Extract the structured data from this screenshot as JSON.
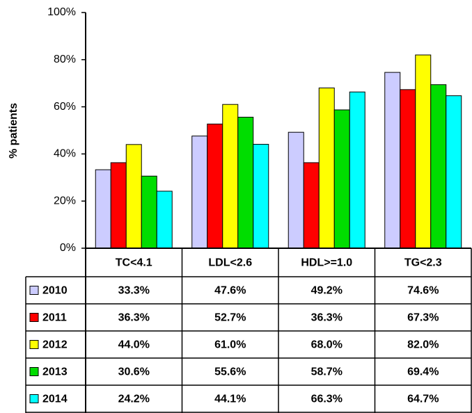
{
  "chart_data": {
    "type": "bar",
    "y_label": "% patients",
    "categories": [
      "TC<4.1",
      "LDL<2.6",
      "HDL>=1.0",
      "TG<2.3"
    ],
    "series": [
      {
        "name": "2010",
        "color": "#ccccff",
        "values": [
          33.3,
          47.6,
          49.2,
          74.6
        ],
        "value_labels": [
          "33.3%",
          "47.6%",
          "49.2%",
          "74.6%"
        ]
      },
      {
        "name": "2011",
        "color": "#ff0000",
        "values": [
          36.3,
          52.7,
          36.3,
          67.3
        ],
        "value_labels": [
          "36.3%",
          "52.7%",
          "36.3%",
          "67.3%"
        ]
      },
      {
        "name": "2012",
        "color": "#ffff00",
        "values": [
          44.0,
          61.0,
          68.0,
          82.0
        ],
        "value_labels": [
          "44.0%",
          "61.0%",
          "68.0%",
          "82.0%"
        ]
      },
      {
        "name": "2013",
        "color": "#00dd00",
        "values": [
          30.6,
          55.6,
          58.7,
          69.4
        ],
        "value_labels": [
          "30.6%",
          "55.6%",
          "58.7%",
          "69.4%"
        ]
      },
      {
        "name": "2014",
        "color": "#00ffff",
        "values": [
          24.2,
          44.1,
          66.3,
          64.7
        ],
        "value_labels": [
          "24.2%",
          "44.1%",
          "66.3%",
          "64.7%"
        ]
      }
    ],
    "ylim": [
      0,
      100
    ],
    "yticks": [
      {
        "value": 0,
        "label": "0%"
      },
      {
        "value": 20,
        "label": "20%"
      },
      {
        "value": 40,
        "label": "40%"
      },
      {
        "value": 60,
        "label": "60%"
      },
      {
        "value": 80,
        "label": "80%"
      },
      {
        "value": 100,
        "label": "100%"
      }
    ]
  }
}
